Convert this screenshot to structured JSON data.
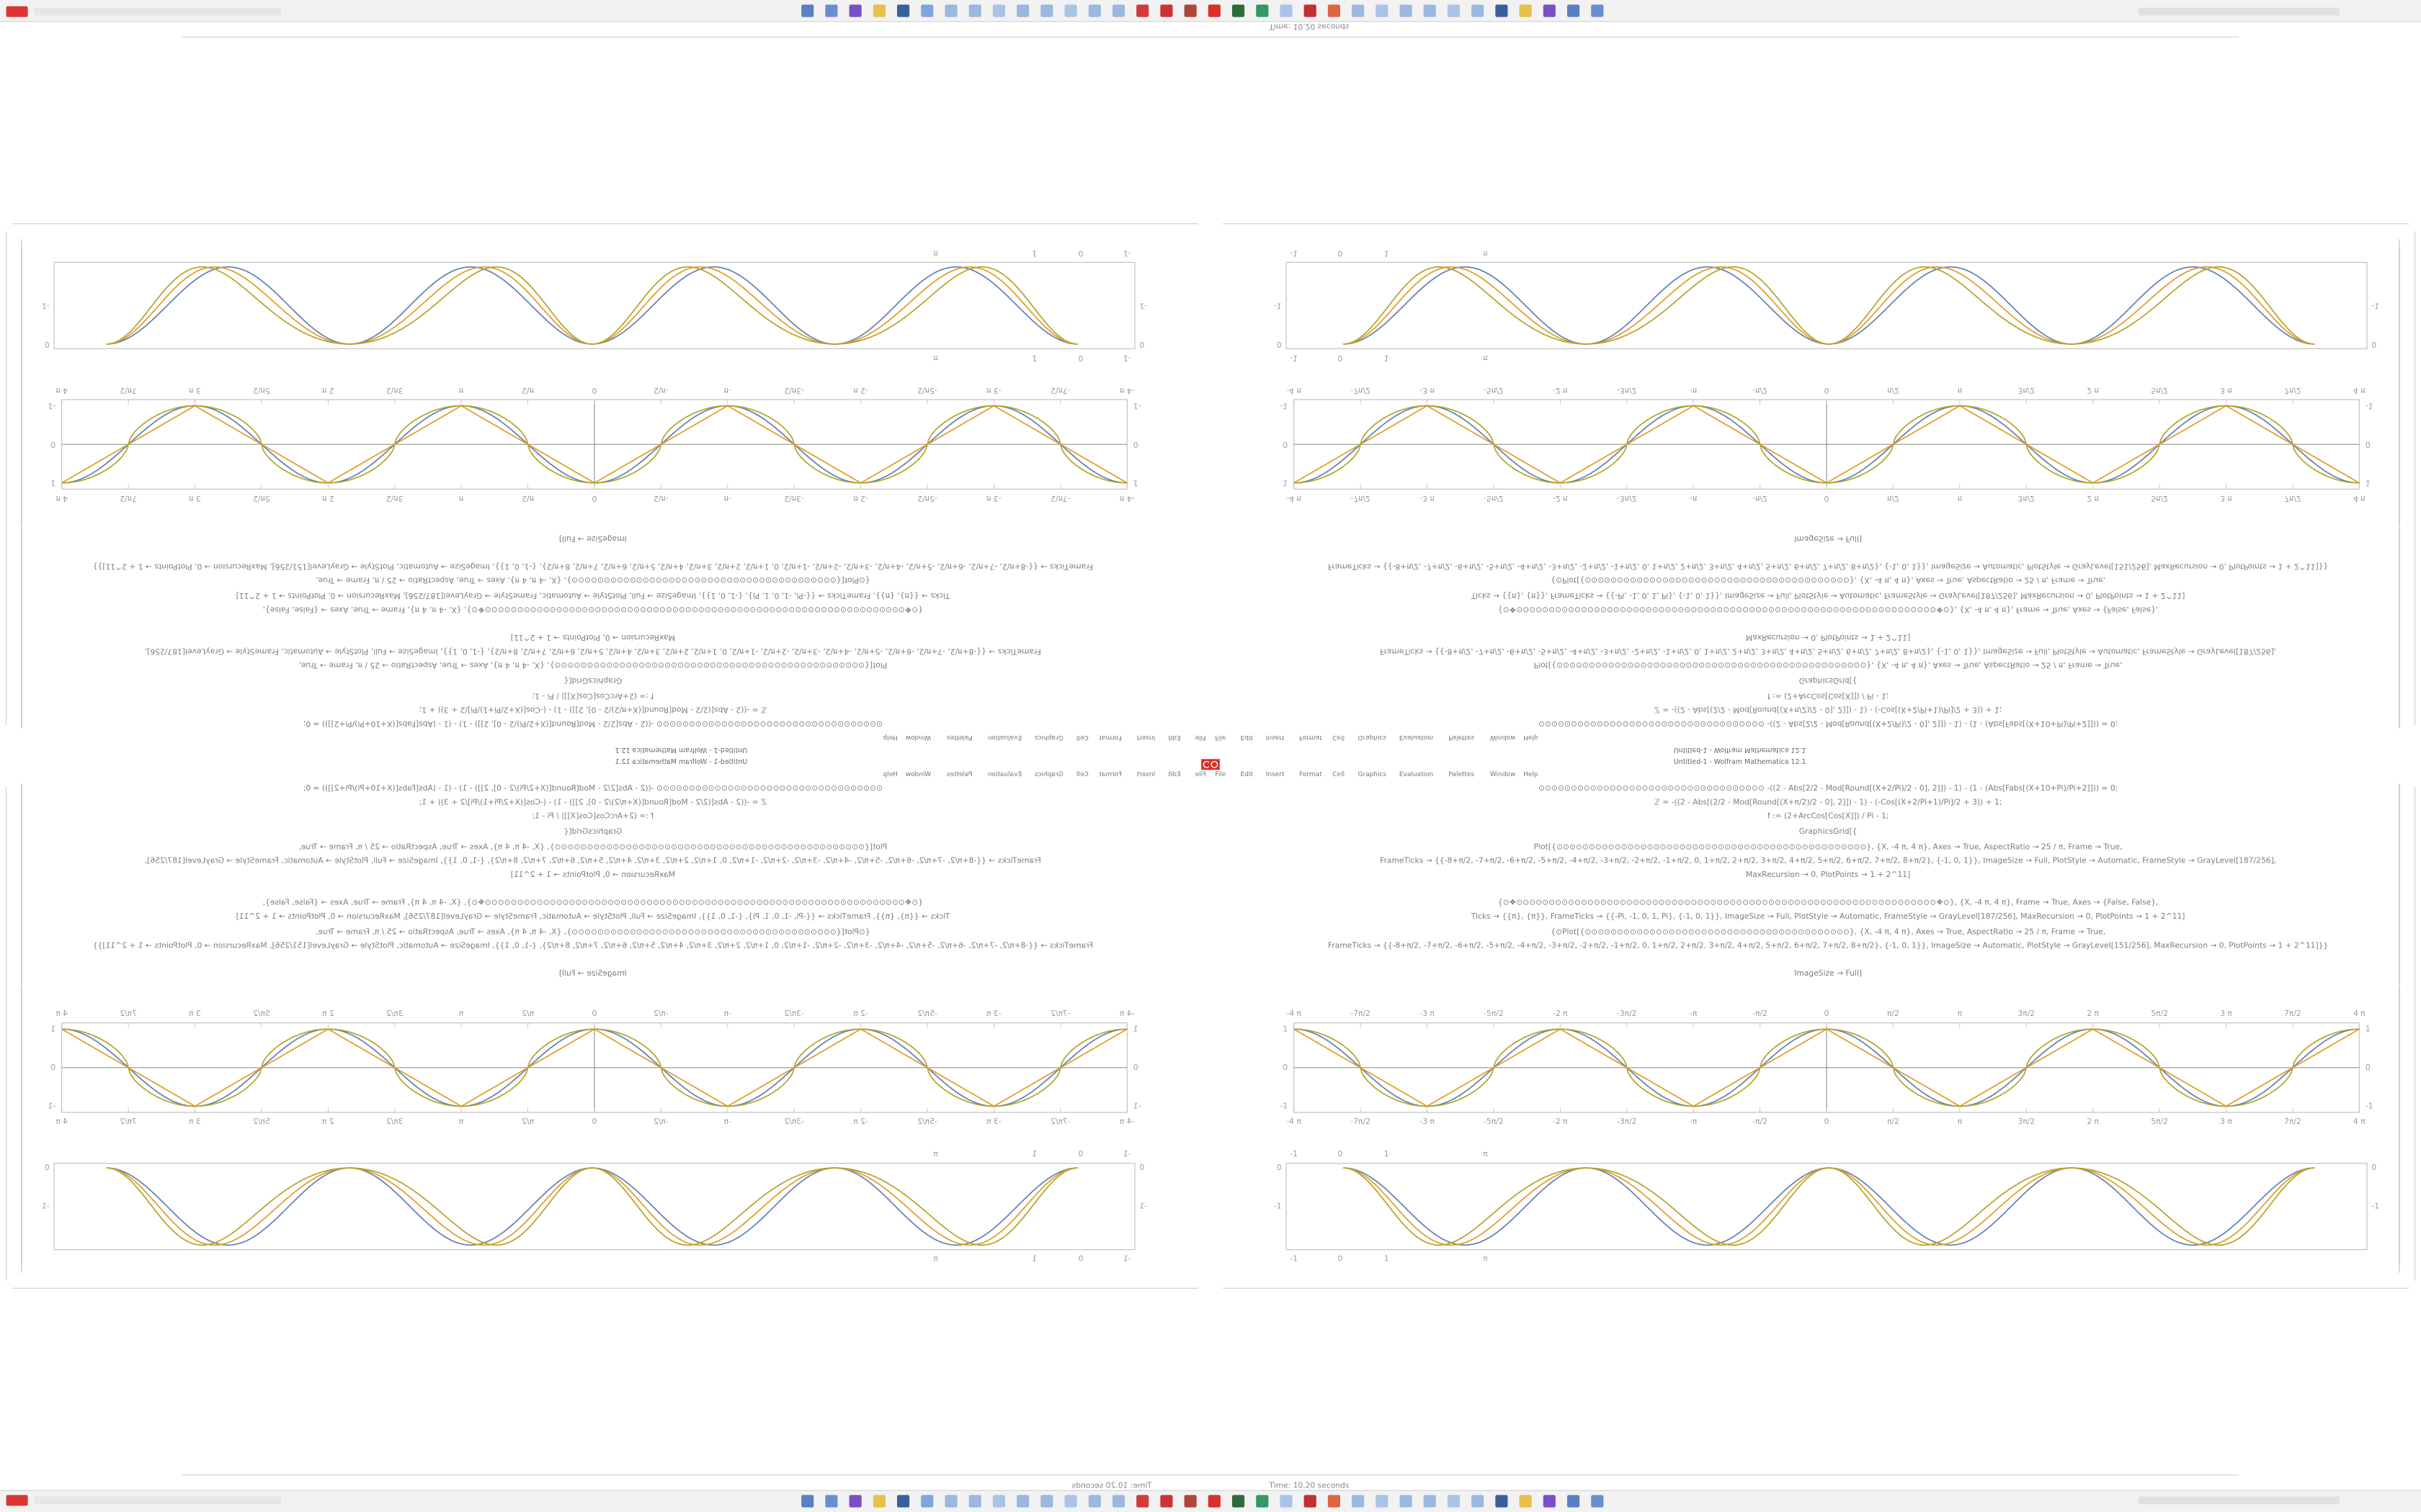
{
  "status": "Time: 10.20 seconds",
  "window": {
    "title": "Untitled-1 - Wolfram Mathematica 12.1",
    "menu": [
      "File",
      "Edit",
      "Insert",
      "Format",
      "Cell",
      "Graphics",
      "Evaluation",
      "Palettes",
      "Window",
      "Help"
    ]
  },
  "notebook": {
    "code": [
      "⊙⊙⊙⊙⊙⊙⊙⊙⊙⊙⊙⊙⊙⊙⊙⊙⊙⊙⊙⊙⊙⊙⊙⊙⊙⊙⊙⊙⊙⊙⊙⊙⊙⊙⊙    -((2 - Abs[2/2 - Mod[Round[(X+2/Pi)/2 - 0], 2]]) - 1) - (1 - (Abs[Fabs[(X+10+Pi)/Pi+2]])) ≈ 0;",
      "ℤ = -((2 - Abs[(2/2 - Mod[Round[(X+π/2)/2 - 0], 2]]) - 1) - (-Cos[(X+2/Pi+1)/Pi]/2 + 3)) + 1;",
      "f := (2+ArcCos[Cos[X]]) / Pi - 1;",
      "GraphicsGrid[{",
      "Plot[{⊙⊙⊙⊙⊙⊙⊙⊙⊙⊙⊙⊙⊙⊙⊙⊙⊙⊙⊙⊙⊙⊙⊙⊙⊙⊙⊙⊙⊙⊙⊙⊙⊙⊙⊙⊙⊙⊙⊙⊙⊙⊙⊙⊙⊙⊙⊙⊙}, {X, -4 π, 4 π}, Axes → True, AspectRatio → 25 / π, Frame → True,",
      "FrameTicks → {{-8+π/2, -7+π/2, -6+π/2, -5+π/2, -4+π/2, -3+π/2, -2+π/2, -1+π/2, 0, 1+π/2, 2+π/2, 3+π/2, 4+π/2, 5+π/2, 6+π/2, 7+π/2, 8+π/2}, {-1, 0, 1}}, ImageSize → Full, PlotStyle → Automatic, FrameStyle → GrayLevel[187/256],",
      "MaxRecursion → 0, PlotPoints → 1 + 2^11]",
      "{⊙❖⊙⊙⊙⊙⊙⊙⊙⊙⊙⊙⊙⊙⊙⊙⊙⊙⊙⊙⊙⊙⊙⊙⊙⊙⊙⊙⊙⊙⊙⊙⊙⊙⊙⊙⊙⊙⊙⊙⊙⊙⊙⊙⊙⊙⊙⊙⊙⊙⊙⊙⊙⊙⊙⊙⊙⊙⊙⊙⊙⊙⊙⊙⊙⊙⊙❖⊙}, {X, -4 π, 4 π}, Frame → True, Axes → {False, False},",
      "Ticks → {{π}, {π}}, FrameTicks → {{-Pi, -1, 0, 1, Pi}, {-1, 0, 1}}, ImageSize → Full, PlotStyle → Automatic, FrameStyle → GrayLevel[187/256], MaxRecursion → 0, PlotPoints → 1 + 2^11]",
      "{⊙Plot[{⊙⊙⊙⊙⊙⊙⊙⊙⊙⊙⊙⊙⊙⊙⊙⊙⊙⊙⊙⊙⊙⊙⊙⊙⊙⊙⊙⊙⊙⊙⊙⊙⊙⊙⊙⊙⊙⊙⊙⊙⊙}, {X, -4 π, 4 π}, Axes → True, AspectRatio → 25 / π, Frame → True,",
      "FrameTicks → {{-8+π/2, -7+π/2, -6+π/2, -5+π/2, -4+π/2, -3+π/2, -2+π/2, -1+π/2, 0, 1+π/2, 2+π/2, 3+π/2, 4+π/2, 5+π/2, 6+π/2, 7+π/2, 8+π/2}, {-1, 0, 1}}, ImageSize → Automatic, PlotStyle → GrayLevel[151/256], MaxRecursion → 0, PlotPoints → 1 + 2^11]}}",
      "ImageSize → Full]"
    ],
    "plot1": {
      "xticks": [
        "-4 π",
        "-7π/2",
        "-3 π",
        "-5π/2",
        "-2 π",
        "-3π/2",
        "-π",
        "-π/2",
        "0",
        "π/2",
        "π",
        "3π/2",
        "2 π",
        "5π/2",
        "3 π",
        "7π/2",
        "4 π"
      ],
      "yticks": [
        "1",
        "0",
        "-1"
      ]
    },
    "plot2": {
      "xticks": [
        "-1",
        "0",
        "1",
        "π"
      ],
      "yticks": [
        "0",
        "-1"
      ]
    }
  }
}
